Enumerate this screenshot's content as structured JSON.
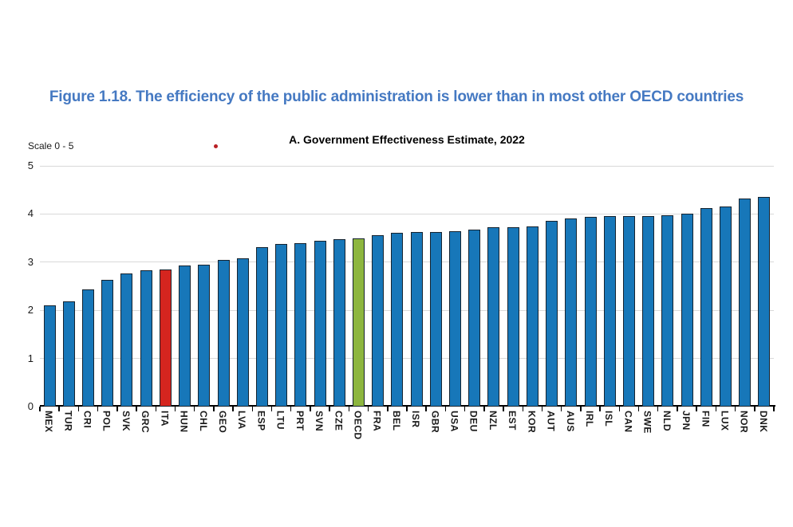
{
  "figure": {
    "title": "Figure 1.18. The efficiency of the public administration is lower than in most other OECD countries",
    "title_color": "#4579c2"
  },
  "chart_data": {
    "type": "bar",
    "title": "A. Government Effectiveness Estimate, 2022",
    "scale_note": "Scale 0 - 5",
    "xlabel": "",
    "ylabel": "",
    "ylim": [
      0,
      5
    ],
    "yticks": [
      0,
      1,
      2,
      3,
      4,
      5
    ],
    "grid": true,
    "legend": "none",
    "categories": [
      "MEX",
      "TUR",
      "CRI",
      "POL",
      "SVK",
      "GRC",
      "ITA",
      "HUN",
      "CHL",
      "GEO",
      "LVA",
      "ESP",
      "LTU",
      "PRT",
      "SVN",
      "CZE",
      "OECD",
      "FRA",
      "BEL",
      "ISR",
      "GBR",
      "USA",
      "DEU",
      "NZL",
      "EST",
      "KOR",
      "AUT",
      "AUS",
      "IRL",
      "ISL",
      "CAN",
      "SWE",
      "NLD",
      "JPN",
      "FIN",
      "LUX",
      "NOR",
      "DNK"
    ],
    "values": [
      2.1,
      2.19,
      2.44,
      2.64,
      2.77,
      2.83,
      2.84,
      2.93,
      2.94,
      3.04,
      3.08,
      3.31,
      3.37,
      3.39,
      3.45,
      3.48,
      3.5,
      3.56,
      3.61,
      3.62,
      3.63,
      3.64,
      3.67,
      3.72,
      3.73,
      3.74,
      3.85,
      3.91,
      3.94,
      3.95,
      3.95,
      3.96,
      3.97,
      4.01,
      4.13,
      4.15,
      4.32,
      4.36
    ],
    "bar_color": "#1777b9",
    "bar_border_color": "#16232f",
    "highlights": {
      "ITA": "#d5251f",
      "OECD": "#8db63f"
    },
    "grid_color": "#d9d9d9",
    "axis_color": "#000000"
  }
}
